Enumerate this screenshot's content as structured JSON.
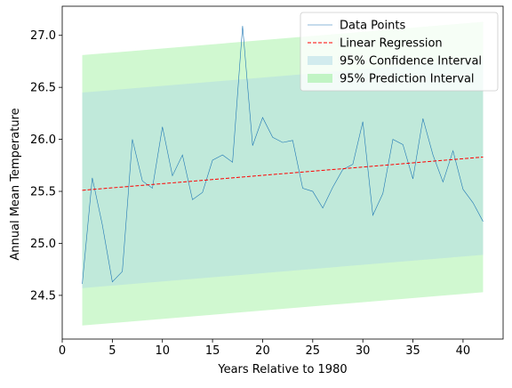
{
  "chart_data": {
    "type": "line",
    "title": "",
    "xlabel": "Years Relative to 1980",
    "ylabel": "Annual Mean Temperature",
    "xlim": [
      0,
      44
    ],
    "ylim": [
      24.08,
      27.28
    ],
    "xticks": [
      "0",
      "5",
      "10",
      "15",
      "20",
      "25",
      "30",
      "35",
      "40"
    ],
    "yticks": [
      "24.5",
      "25.0",
      "25.5",
      "26.0",
      "26.5",
      "27.0"
    ],
    "grid": false,
    "legend_position": "top-right",
    "legend": [
      "Data Points",
      "Linear Regression",
      "95% Confidence Interval",
      "95% Prediction Interval"
    ],
    "series": [
      {
        "name": "Data Points",
        "color": "#1f77b4",
        "x": [
          2,
          3,
          4,
          5,
          6,
          7,
          8,
          9,
          10,
          11,
          12,
          13,
          14,
          15,
          16,
          17,
          18,
          19,
          20,
          21,
          22,
          23,
          24,
          25,
          26,
          27,
          28,
          29,
          30,
          31,
          32,
          33,
          34,
          35,
          36,
          37,
          38,
          39,
          40,
          41,
          42
        ],
        "y": [
          24.61,
          25.63,
          25.18,
          24.63,
          24.73,
          26.0,
          25.6,
          25.53,
          26.12,
          25.65,
          25.85,
          25.42,
          25.49,
          25.8,
          25.85,
          25.78,
          27.09,
          25.94,
          26.21,
          26.02,
          25.97,
          25.99,
          25.53,
          25.5,
          25.34,
          25.54,
          25.71,
          25.76,
          26.17,
          25.27,
          25.48,
          26.0,
          25.95,
          25.62,
          26.2,
          25.85,
          25.59,
          25.89,
          25.52,
          25.39,
          25.21
        ]
      },
      {
        "name": "Linear Regression",
        "color": "#ff0000",
        "x": [
          2,
          42
        ],
        "y": [
          25.51,
          25.83
        ]
      },
      {
        "name": "95% Confidence Interval",
        "color": "#add8e6",
        "x": [
          2,
          42
        ],
        "lower": [
          24.57,
          24.89
        ],
        "upper": [
          26.45,
          26.77
        ]
      },
      {
        "name": "95% Prediction Interval",
        "color": "#90ee90",
        "x": [
          2,
          42
        ],
        "lower": [
          24.21,
          24.53
        ],
        "upper": [
          26.81,
          27.13
        ]
      }
    ]
  }
}
